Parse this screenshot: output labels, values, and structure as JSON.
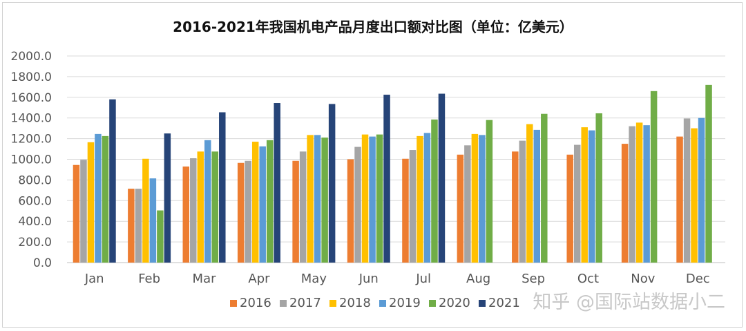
{
  "chart_data": {
    "type": "bar",
    "title": "2016-2021年我国机电产品月度出口额对比图（单位：亿美元）",
    "categories": [
      "Jan",
      "Feb",
      "Mar",
      "Apr",
      "May",
      "Jun",
      "Jul",
      "Aug",
      "Sep",
      "Oct",
      "Nov",
      "Dec"
    ],
    "ylim": [
      0,
      2000
    ],
    "yticks": [
      "0.0",
      "200.0",
      "400.0",
      "600.0",
      "800.0",
      "1000.0",
      "1200.0",
      "1400.0",
      "1600.0",
      "1800.0",
      "2000.0"
    ],
    "grid": true,
    "legend_position": "bottom",
    "series": [
      {
        "name": "2016",
        "color": "#ed7d31",
        "values": [
          945,
          715,
          930,
          965,
          985,
          1000,
          1005,
          1045,
          1075,
          1045,
          1150,
          1220
        ]
      },
      {
        "name": "2017",
        "color": "#a5a5a5",
        "values": [
          995,
          715,
          1010,
          985,
          1075,
          1120,
          1090,
          1135,
          1180,
          1140,
          1320,
          1395
        ]
      },
      {
        "name": "2018",
        "color": "#ffc000",
        "values": [
          1165,
          1005,
          1075,
          1170,
          1235,
          1240,
          1225,
          1245,
          1340,
          1310,
          1355,
          1300
        ]
      },
      {
        "name": "2019",
        "color": "#5b9bd5",
        "values": [
          1245,
          815,
          1185,
          1125,
          1235,
          1220,
          1255,
          1235,
          1285,
          1280,
          1330,
          1400
        ]
      },
      {
        "name": "2020",
        "color": "#70ad47",
        "values": [
          1225,
          505,
          1075,
          1185,
          1210,
          1240,
          1385,
          1380,
          1440,
          1445,
          1660,
          1720
        ]
      },
      {
        "name": "2021",
        "color": "#264478",
        "values": [
          1580,
          1250,
          1455,
          1545,
          1535,
          1625,
          1635,
          null,
          null,
          null,
          null,
          null
        ]
      }
    ]
  },
  "watermark": "知乎 @国际站数据小二"
}
